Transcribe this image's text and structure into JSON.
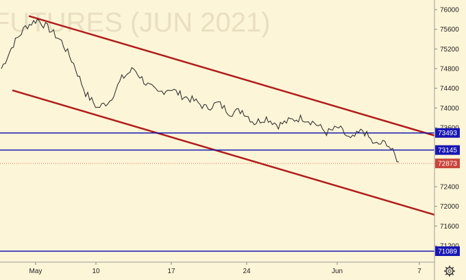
{
  "chart_data": {
    "type": "line",
    "title": "FUTURES (JUN 2021)",
    "y_axis": {
      "range": [
        70960,
        76100
      ],
      "ticks": [
        76000,
        75600,
        75200,
        74800,
        74400,
        74000,
        73600,
        72400,
        72000,
        71600,
        71200
      ]
    },
    "x_axis": {
      "ticks": [
        "May",
        "10",
        "17",
        "24",
        "Jun",
        "7"
      ]
    },
    "series": [
      {
        "values": [
          74800,
          75300,
          75650,
          75800,
          75600,
          75350,
          74900,
          74300,
          74000,
          74150,
          74600,
          74800,
          74500,
          74300,
          74400,
          74250,
          74150,
          74000,
          74100,
          73900,
          73950,
          73700,
          73800,
          73650,
          73750,
          73800,
          73700,
          73500,
          73600,
          73350,
          73550,
          73250,
          73300,
          72900
        ]
      }
    ],
    "channel": {
      "upper_start": 75870,
      "upper_end": 73440,
      "lower_start": 74360,
      "lower_end": 71830
    },
    "levels": [
      {
        "label": "73493",
        "value": 73493,
        "color": "#1717b3"
      },
      {
        "label": "73145",
        "value": 73145,
        "color": "#1717b3"
      },
      {
        "label": "71089",
        "value": 71089,
        "color": "#1717b3"
      }
    ],
    "last_price": {
      "label": "72873",
      "value": 72873,
      "color": "#c9443a"
    },
    "grid": false,
    "colors": {
      "price_line": "#333333",
      "channel": "#b01c1c",
      "levels": "#1717b3"
    }
  },
  "settings_icon": "gear-icon"
}
